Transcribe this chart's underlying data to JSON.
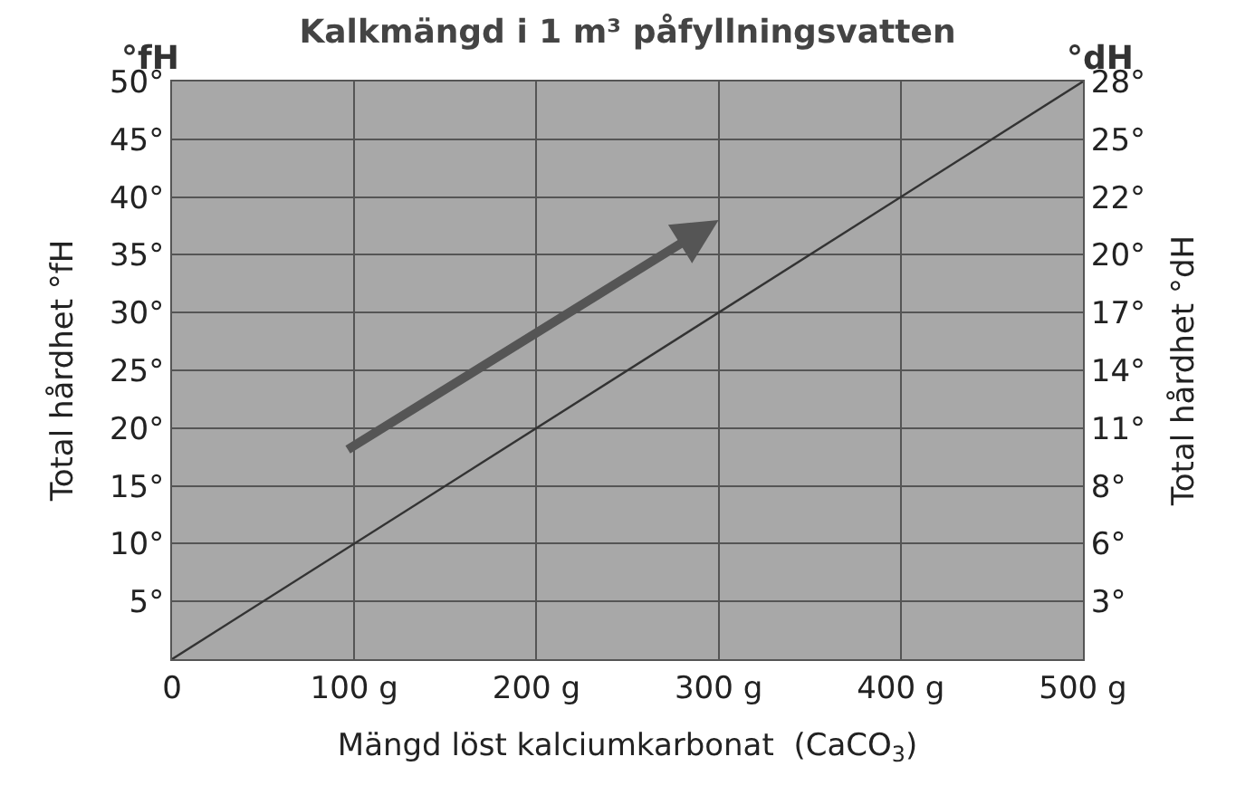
{
  "chart_data": {
    "type": "line",
    "title": "Kalkmängd i 1 m³ påfyllningsvatten",
    "xlabel": "Mängd löst kalciumkarbonat  (CaCO$_{3}$)",
    "ylabel": "Total hårdhet °fH",
    "y2label": "Total hårdhet °dH",
    "annotations": [
      "°fH",
      "°dH"
    ],
    "x": [
      0,
      500
    ],
    "series": [
      {
        "color": "#333333",
        "values": [
          0,
          50
        ]
      },
      {
        "axis": "y2",
        "color": "#333333",
        "values": [
          null,
          null
        ]
      }
    ],
    "xlim": [
      0,
      500
    ],
    "xticks": [
      0,
      {
        "value": 100,
        "label": "100 g"
      },
      {
        "value": 200,
        "label": "200 g"
      },
      {
        "value": 300,
        "label": "300 g"
      },
      {
        "value": 400,
        "label": "400 g"
      },
      {
        "value": 500,
        "label": "500 g"
      }
    ],
    "ylim": [
      0,
      50
    ],
    "yticks": [
      {
        "value": 0,
        "label": null
      },
      {
        "value": 5,
        "label": "5°"
      },
      {
        "value": 10,
        "label": "10°"
      },
      {
        "value": 15,
        "label": "15°"
      },
      {
        "value": 20,
        "label": "20°"
      },
      {
        "value": 25,
        "label": "25°"
      },
      {
        "value": 30,
        "label": "30°"
      },
      {
        "value": 35,
        "label": "35°"
      },
      {
        "value": 40,
        "label": "40°"
      },
      {
        "value": 45,
        "label": "45°"
      },
      {
        "value": 50,
        "label": "50°"
      }
    ],
    "y2lim": [
      0,
      28
    ],
    "y2ticks": [
      {
        "value": 2.8,
        "label": "3°"
      },
      {
        "value": 5.6,
        "label": "6°"
      },
      {
        "value": 8.4,
        "label": "8°"
      },
      {
        "value": 11.2,
        "label": "11°"
      },
      {
        "value": 14,
        "label": "14°"
      },
      {
        "value": 16.8,
        "label": "17°"
      },
      {
        "value": 19.6,
        "label": "20°"
      },
      {
        "value": 22.4,
        "label": "22°"
      },
      {
        "value": 25.2,
        "label": "25°"
      },
      {
        "value": 28,
        "label": "28°"
      }
    ],
    "grid": true,
    "marker": "none",
    "line_style": "solid"
  }
}
